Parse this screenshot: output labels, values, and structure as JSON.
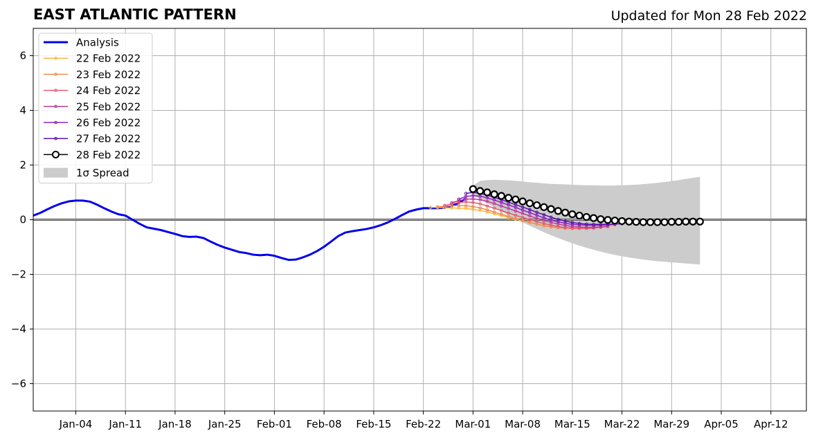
{
  "chart_data": {
    "type": "line",
    "title": "EAST ATLANTIC PATTERN",
    "subtitle": "Updated for Mon 28 Feb 2022",
    "xlabel": "",
    "ylabel": "",
    "x_range": [
      "2021-12-29",
      "2022-04-17"
    ],
    "ylim": [
      -7,
      7
    ],
    "yticks": [
      -6,
      -4,
      -2,
      0,
      2,
      4,
      6
    ],
    "ytick_labels": [
      "−6",
      "−4",
      "−2",
      "0",
      "2",
      "4",
      "6"
    ],
    "xticks": [
      "2022-01-04",
      "2022-01-11",
      "2022-01-18",
      "2022-01-25",
      "2022-02-01",
      "2022-02-08",
      "2022-02-15",
      "2022-02-22",
      "2022-03-01",
      "2022-03-08",
      "2022-03-15",
      "2022-03-22",
      "2022-03-29",
      "2022-04-05",
      "2022-04-12"
    ],
    "xtick_labels": [
      "Jan-04",
      "Jan-11",
      "Jan-18",
      "Jan-25",
      "Feb-01",
      "Feb-08",
      "Feb-15",
      "Feb-22",
      "Mar-01",
      "Mar-08",
      "Mar-15",
      "Mar-22",
      "Mar-29",
      "Apr-05",
      "Apr-12"
    ],
    "grid": true,
    "legend_position": "top-left",
    "zero_line": true,
    "series": [
      {
        "name": "Analysis",
        "color": "#0000ee",
        "style": "thick",
        "x": [
          "2021-12-29",
          "2021-12-30",
          "2021-12-31",
          "2022-01-01",
          "2022-01-02",
          "2022-01-03",
          "2022-01-04",
          "2022-01-05",
          "2022-01-06",
          "2022-01-07",
          "2022-01-08",
          "2022-01-09",
          "2022-01-10",
          "2022-01-11",
          "2022-01-12",
          "2022-01-13",
          "2022-01-14",
          "2022-01-15",
          "2022-01-16",
          "2022-01-17",
          "2022-01-18",
          "2022-01-19",
          "2022-01-20",
          "2022-01-21",
          "2022-01-22",
          "2022-01-23",
          "2022-01-24",
          "2022-01-25",
          "2022-01-26",
          "2022-01-27",
          "2022-01-28",
          "2022-01-29",
          "2022-01-30",
          "2022-01-31",
          "2022-02-01",
          "2022-02-02",
          "2022-02-03",
          "2022-02-04",
          "2022-02-05",
          "2022-02-06",
          "2022-02-07",
          "2022-02-08",
          "2022-02-09",
          "2022-02-10",
          "2022-02-11",
          "2022-02-12",
          "2022-02-13",
          "2022-02-14",
          "2022-02-15",
          "2022-02-16",
          "2022-02-17",
          "2022-02-18",
          "2022-02-19",
          "2022-02-20",
          "2022-02-21",
          "2022-02-22",
          "2022-02-23",
          "2022-02-24",
          "2022-02-25",
          "2022-02-26",
          "2022-02-27",
          "2022-02-28"
        ],
        "y": [
          0.15,
          0.25,
          0.38,
          0.5,
          0.6,
          0.67,
          0.7,
          0.7,
          0.66,
          0.55,
          0.42,
          0.3,
          0.2,
          0.15,
          0.0,
          -0.15,
          -0.28,
          -0.33,
          -0.38,
          -0.45,
          -0.52,
          -0.6,
          -0.63,
          -0.62,
          -0.67,
          -0.8,
          -0.92,
          -1.02,
          -1.1,
          -1.18,
          -1.22,
          -1.28,
          -1.3,
          -1.28,
          -1.32,
          -1.4,
          -1.47,
          -1.46,
          -1.38,
          -1.28,
          -1.15,
          -0.99,
          -0.8,
          -0.6,
          -0.47,
          -0.42,
          -0.38,
          -0.34,
          -0.28,
          -0.2,
          -0.1,
          0.03,
          0.17,
          0.3,
          0.37,
          0.42,
          0.42,
          0.42,
          0.44,
          0.5,
          0.62,
          0.78
        ]
      },
      {
        "name": "22 Feb 2022",
        "color": "#f9b741",
        "style": "thin",
        "marker": "small",
        "start": "2022-02-23",
        "y": [
          0.45,
          0.45,
          0.44,
          0.43,
          0.42,
          0.41,
          0.38,
          0.34,
          0.28,
          0.22,
          0.15,
          0.08,
          0.02,
          -0.04,
          -0.1,
          -0.16,
          -0.21,
          -0.25,
          -0.28,
          -0.3,
          -0.31,
          -0.31,
          -0.3,
          -0.28,
          -0.26,
          -0.23,
          -0.2
        ]
      },
      {
        "name": "23 Feb 2022",
        "color": "#f4894c",
        "style": "thin",
        "marker": "small",
        "start": "2022-02-24",
        "y": [
          0.47,
          0.49,
          0.51,
          0.52,
          0.51,
          0.48,
          0.43,
          0.36,
          0.28,
          0.2,
          0.12,
          0.04,
          -0.03,
          -0.1,
          -0.16,
          -0.22,
          -0.26,
          -0.29,
          -0.31,
          -0.32,
          -0.32,
          -0.31,
          -0.29,
          -0.26,
          -0.23
        ]
      },
      {
        "name": "24 Feb 2022",
        "color": "#e05c70",
        "style": "thin",
        "marker": "small",
        "start": "2022-02-25",
        "y": [
          0.52,
          0.58,
          0.63,
          0.65,
          0.63,
          0.58,
          0.5,
          0.42,
          0.33,
          0.25,
          0.16,
          0.08,
          0.0,
          -0.07,
          -0.14,
          -0.2,
          -0.25,
          -0.29,
          -0.31,
          -0.32,
          -0.32,
          -0.31,
          -0.28,
          -0.25
        ]
      },
      {
        "name": "25 Feb 2022",
        "color": "#bd3a98",
        "style": "thin",
        "marker": "small",
        "start": "2022-02-26",
        "y": [
          0.62,
          0.7,
          0.75,
          0.76,
          0.73,
          0.67,
          0.59,
          0.5,
          0.41,
          0.32,
          0.23,
          0.14,
          0.05,
          -0.03,
          -0.1,
          -0.16,
          -0.21,
          -0.25,
          -0.27,
          -0.28,
          -0.28,
          -0.27,
          -0.25
        ]
      },
      {
        "name": "26 Feb 2022",
        "color": "#8f1fbb",
        "style": "thin",
        "marker": "small",
        "start": "2022-02-27",
        "y": [
          0.75,
          0.85,
          0.88,
          0.86,
          0.8,
          0.72,
          0.63,
          0.54,
          0.45,
          0.35,
          0.26,
          0.16,
          0.07,
          -0.02,
          -0.08,
          -0.13,
          -0.17,
          -0.19,
          -0.2,
          -0.21,
          -0.2,
          -0.19,
          -0.17
        ]
      },
      {
        "name": "27 Feb 2022",
        "color": "#5812aa",
        "style": "thin",
        "marker": "small",
        "start": "2022-02-28",
        "y": [
          0.96,
          1.0,
          0.96,
          0.9,
          0.82,
          0.73,
          0.64,
          0.55,
          0.46,
          0.37,
          0.27,
          0.18,
          0.09,
          0.01,
          -0.05,
          -0.1,
          -0.14,
          -0.16,
          -0.17,
          -0.17,
          -0.17,
          -0.16,
          -0.15
        ]
      },
      {
        "name": "28 Feb 2022",
        "color": "#000000",
        "style": "circles",
        "start": "2022-03-01",
        "y": [
          1.12,
          1.05,
          1.0,
          0.93,
          0.87,
          0.8,
          0.74,
          0.67,
          0.6,
          0.53,
          0.46,
          0.39,
          0.32,
          0.26,
          0.2,
          0.15,
          0.1,
          0.06,
          0.02,
          -0.01,
          -0.03,
          -0.05,
          -0.07,
          -0.08,
          -0.09,
          -0.09,
          -0.09,
          -0.09,
          -0.08,
          -0.08,
          -0.07,
          -0.07,
          -0.07
        ]
      }
    ],
    "spread": {
      "name": "1σ Spread",
      "color": "#cccccc",
      "start": "2022-03-01",
      "end": "2022-04-02",
      "upper": [
        1.25,
        1.42,
        1.45,
        1.46,
        1.45,
        1.44,
        1.42,
        1.4,
        1.37,
        1.35,
        1.33,
        1.31,
        1.3,
        1.29,
        1.28,
        1.27,
        1.26,
        1.26,
        1.25,
        1.25,
        1.25,
        1.26,
        1.27,
        1.28,
        1.3,
        1.32,
        1.35,
        1.38,
        1.41,
        1.45,
        1.49,
        1.53,
        1.57
      ],
      "lower": [
        0.9,
        0.75,
        0.6,
        0.45,
        0.3,
        0.15,
        0.02,
        -0.1,
        -0.22,
        -0.34,
        -0.46,
        -0.57,
        -0.67,
        -0.77,
        -0.86,
        -0.95,
        -1.03,
        -1.1,
        -1.17,
        -1.23,
        -1.29,
        -1.34,
        -1.38,
        -1.42,
        -1.46,
        -1.49,
        -1.52,
        -1.54,
        -1.56,
        -1.58,
        -1.6,
        -1.62,
        -1.64
      ]
    }
  }
}
